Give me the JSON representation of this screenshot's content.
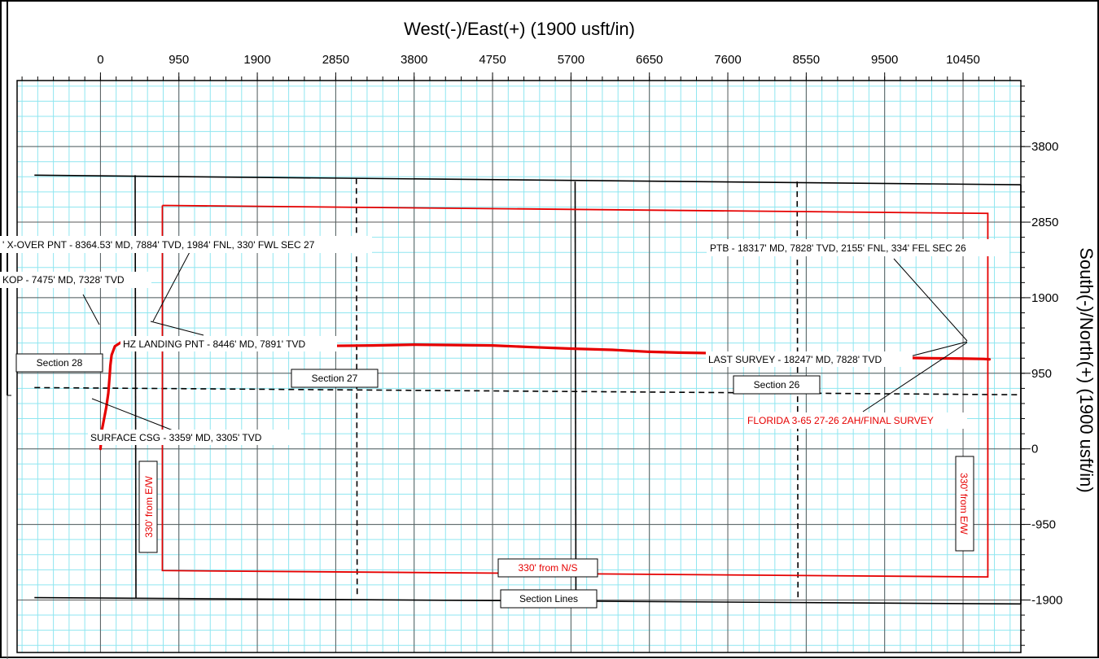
{
  "colors": {
    "grid_minor": "#8fe6f0",
    "grid_major": "#5a5a5a",
    "wellpath": "#e60000",
    "section_lines": "#000000",
    "annotation_red": "#e60000"
  },
  "chart_data": {
    "type": "line",
    "title": "",
    "xlabel": "West(-)/East(+) (1900 usft/in)",
    "ylabel": "South(-)/North(+) (1900 usft/in)",
    "x_ticks": [
      "0",
      "950",
      "1900",
      "2850",
      "3800",
      "4750",
      "5700",
      "6650",
      "7600",
      "8550",
      "9500",
      "10450"
    ],
    "y_ticks": [
      "3800",
      "2850",
      "1900",
      "950",
      "0",
      "-950",
      "-1900"
    ],
    "xlim": [
      -1010,
      11150
    ],
    "ylim": [
      -2560,
      4630
    ],
    "grid": true,
    "series": [
      {
        "name": "FLORIDA 3-65 27-26 2AH/FINAL SURVEY",
        "x": [
          0,
          20,
          70,
          95,
          110,
          120,
          135,
          175,
          250,
          400,
          600,
          800,
          1000,
          1300,
          1700,
          2100,
          2300,
          2500,
          2850,
          3300,
          3800,
          4300,
          4750,
          5200,
          5700,
          6200,
          6650,
          7000,
          7600,
          8100,
          8550,
          9000,
          9500,
          10000,
          10450,
          10700,
          10770
        ],
        "y": [
          0,
          250,
          520,
          700,
          900,
          1050,
          1180,
          1290,
          1340,
          1360,
          1380,
          1395,
          1400,
          1385,
          1360,
          1350,
          1325,
          1305,
          1295,
          1300,
          1310,
          1305,
          1300,
          1280,
          1260,
          1245,
          1220,
          1210,
          1200,
          1190,
          1170,
          1160,
          1150,
          1140,
          1135,
          1130,
          1125
        ]
      },
      {
        "name": "330' from N/S",
        "x": [
          750,
          10750,
          10750,
          750,
          750
        ],
        "y": [
          3060,
          2960,
          -1610,
          -1530,
          3060
        ]
      }
    ],
    "section_lines_solid": [
      {
        "x": [
          -800,
          11150
        ],
        "y": [
          3440,
          3320
        ]
      },
      {
        "x": [
          -800,
          11150
        ],
        "y": [
          -1870,
          -1950
        ]
      },
      {
        "x": [
          420,
          430
        ],
        "y": [
          3440,
          -1870
        ]
      },
      {
        "x": [
          5750,
          5760
        ],
        "y": [
          3360,
          -1920
        ]
      },
      {
        "x": [
          11150,
          11150
        ],
        "y": [
          3320,
          -1950
        ]
      }
    ],
    "section_lines_dashed": [
      {
        "x": [
          -800,
          11150
        ],
        "y": [
          770,
          680
        ]
      },
      {
        "x": [
          3100,
          3110
        ],
        "y": [
          3400,
          -1870
        ]
      },
      {
        "x": [
          8440,
          8450
        ],
        "y": [
          3360,
          -1870
        ]
      }
    ],
    "labels": {
      "xover": "' X-OVER PNT - 8364.53' MD, 7884' TVD, 1984' FNL, 330' FWL SEC 27",
      "ptb": "PTB - 18317' MD, 7828' TVD, 2155' FNL, 334' FEL SEC 26",
      "kop": "KOP - 7475' MD, 7328' TVD",
      "hz_landing": "HZ LANDING PNT - 8446' MD, 7891' TVD",
      "last_survey": "LAST SURVEY - 18247' MD, 7828' TVD",
      "section28": "Section 28",
      "section27": "Section 27",
      "section26": "Section 26",
      "well_name": "FLORIDA 3-65 27-26 2AH/FINAL SURVEY",
      "surface_csg": "SURFACE CSG - 3359' MD, 3305' TVD",
      "from_ew_left": "330' from E/W",
      "from_ew_right": "330' from E/W",
      "from_ns": "330' from N/S",
      "section_lines": "Section Lines"
    }
  }
}
